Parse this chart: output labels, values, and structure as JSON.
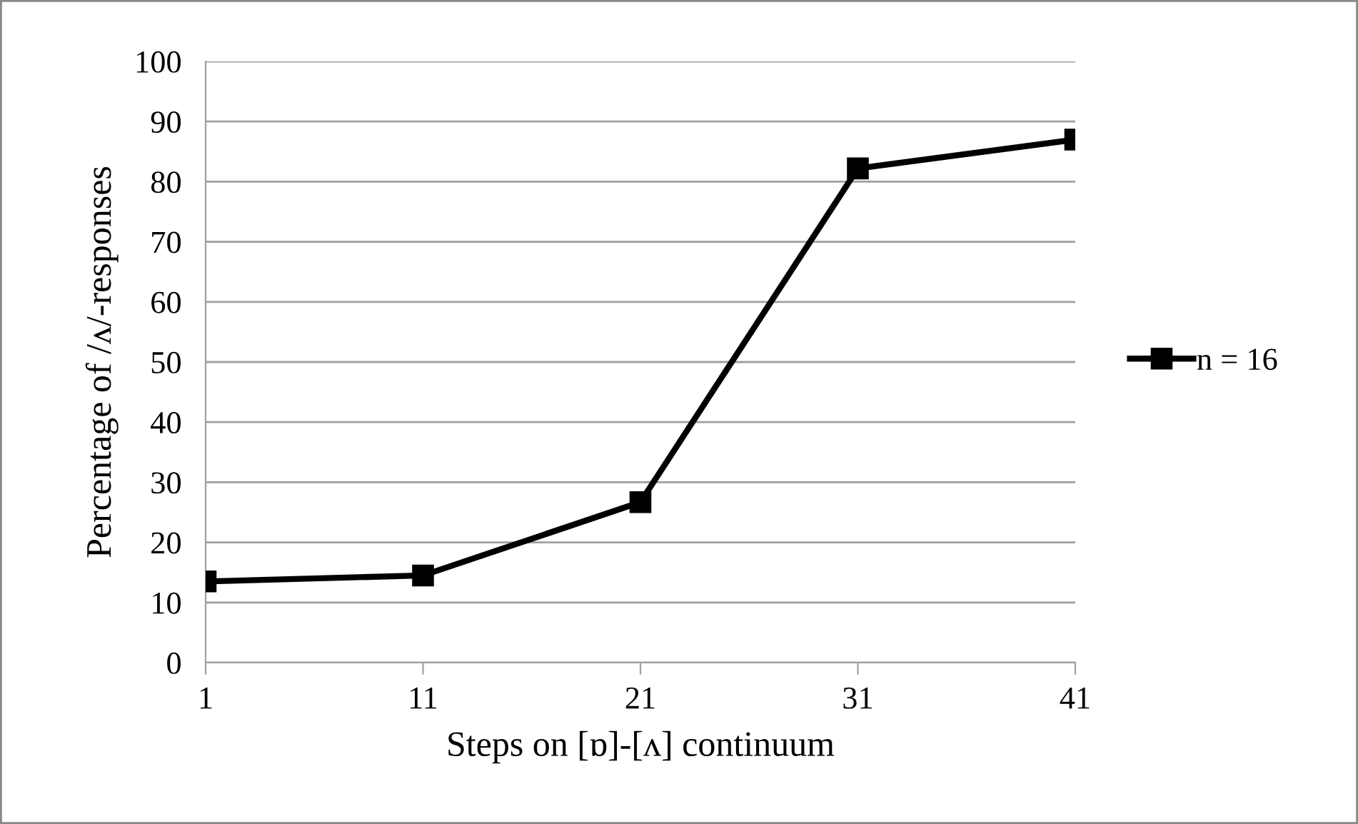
{
  "chart_data": {
    "type": "line",
    "xlabel": "Steps on [ɒ]-[ʌ] continuum",
    "ylabel": "Percentage of /ʌ/-responses",
    "categories": [
      "1",
      "11",
      "21",
      "31",
      "41"
    ],
    "series": [
      {
        "name": "n = 16",
        "color": "#000000",
        "values": [
          13.5,
          14.5,
          26.7,
          82.2,
          87.0
        ]
      }
    ],
    "ylim": [
      0,
      100
    ],
    "yticks": [
      0,
      10,
      20,
      30,
      40,
      50,
      60,
      70,
      80,
      90,
      100
    ],
    "grid": "y",
    "legend": "right",
    "marker": "square",
    "line_style": "solid"
  }
}
